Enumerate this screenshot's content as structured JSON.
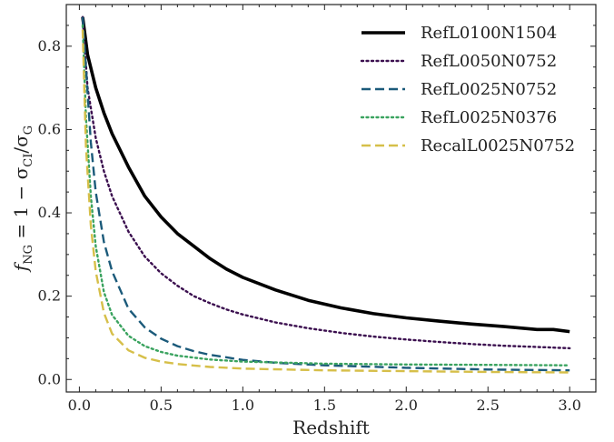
{
  "chart_data": {
    "type": "line",
    "title": "",
    "xlabel": "Redshift",
    "ylabel": "f_NG = 1 − σ_CI/σ_G",
    "ylabel_parts": {
      "f": "f",
      "f_sub": "NG",
      "eq": " = 1 − σ",
      "ci_sub": "CI",
      "slash": "/σ",
      "g_sub": "G"
    },
    "xlim": [
      -0.08,
      3.16
    ],
    "ylim": [
      -0.03,
      0.9
    ],
    "xticks": [
      0.0,
      0.5,
      1.0,
      1.5,
      2.0,
      2.5,
      3.0
    ],
    "xtick_labels": [
      "0.0",
      "0.5",
      "1.0",
      "1.5",
      "2.0",
      "2.5",
      "3.0"
    ],
    "yticks": [
      0.0,
      0.2,
      0.4,
      0.6,
      0.8
    ],
    "ytick_labels": [
      "0.0",
      "0.2",
      "0.4",
      "0.6",
      "0.8"
    ],
    "grid": false,
    "legend_position": "top-right",
    "series": [
      {
        "name": "RefL0100N1504",
        "color": "#000000",
        "style": "solid",
        "x": [
          0.02,
          0.05,
          0.1,
          0.15,
          0.2,
          0.3,
          0.4,
          0.5,
          0.6,
          0.7,
          0.8,
          0.9,
          1.0,
          1.2,
          1.4,
          1.6,
          1.8,
          2.0,
          2.2,
          2.4,
          2.6,
          2.8,
          2.9,
          3.0
        ],
        "y": [
          0.87,
          0.78,
          0.7,
          0.64,
          0.59,
          0.51,
          0.44,
          0.39,
          0.35,
          0.32,
          0.29,
          0.265,
          0.245,
          0.215,
          0.19,
          0.172,
          0.158,
          0.148,
          0.14,
          0.133,
          0.127,
          0.12,
          0.12,
          0.115
        ]
      },
      {
        "name": "RefL0050N0752",
        "color": "#3b0f4f",
        "style": "dotted",
        "x": [
          0.02,
          0.05,
          0.1,
          0.15,
          0.2,
          0.3,
          0.4,
          0.5,
          0.6,
          0.7,
          0.8,
          0.9,
          1.0,
          1.2,
          1.4,
          1.6,
          1.8,
          2.0,
          2.2,
          2.4,
          2.6,
          2.8,
          3.0
        ],
        "y": [
          0.87,
          0.7,
          0.58,
          0.5,
          0.44,
          0.355,
          0.295,
          0.255,
          0.225,
          0.2,
          0.183,
          0.168,
          0.156,
          0.137,
          0.123,
          0.112,
          0.103,
          0.096,
          0.09,
          0.085,
          0.081,
          0.078,
          0.075
        ]
      },
      {
        "name": "RefL0025N0752",
        "color": "#1b5a7a",
        "style": "dashed",
        "x": [
          0.02,
          0.04,
          0.07,
          0.1,
          0.15,
          0.2,
          0.3,
          0.4,
          0.5,
          0.6,
          0.7,
          0.8,
          1.0,
          1.2,
          1.5,
          2.0,
          2.5,
          3.0
        ],
        "y": [
          0.87,
          0.75,
          0.57,
          0.45,
          0.33,
          0.26,
          0.17,
          0.125,
          0.098,
          0.08,
          0.068,
          0.059,
          0.047,
          0.04,
          0.034,
          0.028,
          0.024,
          0.022
        ]
      },
      {
        "name": "RefL0025N0376",
        "color": "#3aa35f",
        "style": "dotted",
        "x": [
          0.02,
          0.04,
          0.07,
          0.1,
          0.15,
          0.2,
          0.3,
          0.4,
          0.5,
          0.6,
          0.8,
          1.0,
          1.5,
          2.0,
          2.5,
          3.0
        ],
        "y": [
          0.85,
          0.63,
          0.44,
          0.32,
          0.21,
          0.155,
          0.105,
          0.08,
          0.066,
          0.057,
          0.048,
          0.043,
          0.038,
          0.036,
          0.035,
          0.034
        ]
      },
      {
        "name": "RecalL0025N0752",
        "color": "#d6bf49",
        "style": "dashed",
        "x": [
          0.02,
          0.04,
          0.07,
          0.1,
          0.15,
          0.2,
          0.3,
          0.4,
          0.5,
          0.6,
          0.8,
          1.0,
          1.5,
          2.0,
          2.5,
          3.0
        ],
        "y": [
          0.84,
          0.56,
          0.37,
          0.26,
          0.16,
          0.11,
          0.07,
          0.052,
          0.043,
          0.037,
          0.03,
          0.026,
          0.022,
          0.02,
          0.018,
          0.017
        ]
      }
    ]
  }
}
